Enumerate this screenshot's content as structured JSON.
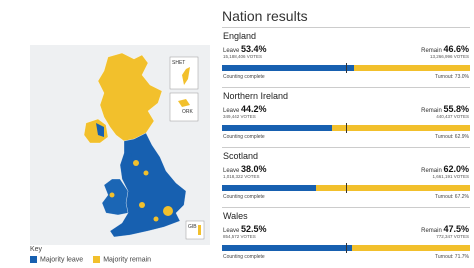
{
  "map": {
    "insets": [
      "SHET",
      "ORK",
      "GIB"
    ]
  },
  "key": {
    "title": "Key",
    "items": [
      {
        "label": "Majority leave",
        "color": "#1760b0"
      },
      {
        "label": "Majority remain",
        "color": "#f2c02c"
      }
    ]
  },
  "results": {
    "title": "Nation results",
    "nations": [
      {
        "name": "England",
        "leave": {
          "label": "Leave",
          "value": 53.4,
          "value_label": "53.4%",
          "votes": "15,188,406 VOTES"
        },
        "remain": {
          "label": "Remain",
          "value": 46.6,
          "value_label": "46.6%",
          "votes": "13,266,996 VOTES"
        },
        "status": "Counting complete",
        "turnout": "Turnout: 73.0%"
      },
      {
        "name": "Northern Ireland",
        "leave": {
          "label": "Leave",
          "value": 44.2,
          "value_label": "44.2%",
          "votes": "349,442 VOTES"
        },
        "remain": {
          "label": "Remain",
          "value": 55.8,
          "value_label": "55.8%",
          "votes": "440,437 VOTES"
        },
        "status": "Counting complete",
        "turnout": "Turnout: 62.9%"
      },
      {
        "name": "Scotland",
        "leave": {
          "label": "Leave",
          "value": 38.0,
          "value_label": "38.0%",
          "votes": "1,018,322 VOTES"
        },
        "remain": {
          "label": "Remain",
          "value": 62.0,
          "value_label": "62.0%",
          "votes": "1,661,191 VOTES"
        },
        "status": "Counting complete",
        "turnout": "Turnout: 67.2%"
      },
      {
        "name": "Wales",
        "leave": {
          "label": "Leave",
          "value": 52.5,
          "value_label": "52.5%",
          "votes": "854,572 VOTES"
        },
        "remain": {
          "label": "Remain",
          "value": 47.5,
          "value_label": "47.5%",
          "votes": "772,347 VOTES"
        },
        "status": "Counting complete",
        "turnout": "Turnout: 71.7%"
      }
    ]
  }
}
